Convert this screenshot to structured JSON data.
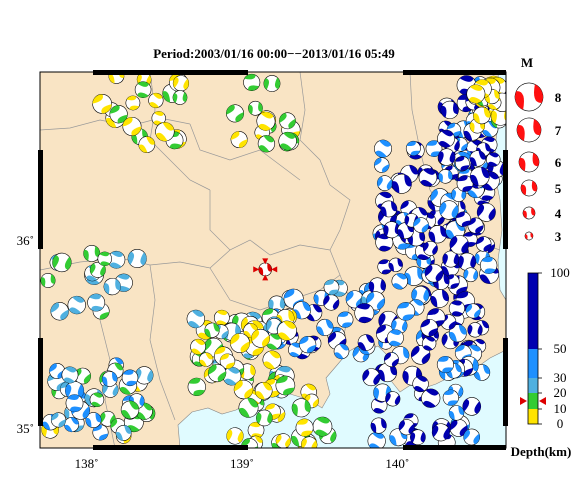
{
  "title": "Period:2003/01/16 00:00−−2013/01/16 05:49",
  "axes": {
    "x_ticks": [
      "138˚",
      "139˚",
      "140˚"
    ],
    "y_ticks": [
      "36˚",
      "35˚"
    ],
    "lon_range": [
      137.7,
      140.7
    ],
    "lat_range": [
      34.9,
      36.9
    ]
  },
  "magnitude_legend": {
    "title": "M",
    "items": [
      {
        "m": 8,
        "label": "8"
      },
      {
        "m": 7,
        "label": "7"
      },
      {
        "m": 6,
        "label": "6"
      },
      {
        "m": 5,
        "label": "5"
      },
      {
        "m": 4,
        "label": "4"
      },
      {
        "m": 3,
        "label": "3"
      }
    ]
  },
  "depth_scale": {
    "title": "Depth(km)",
    "ticks": [
      {
        "value": 100,
        "label": "100"
      },
      {
        "value": 50,
        "label": "50"
      },
      {
        "value": 30,
        "label": "30"
      },
      {
        "value": 20,
        "label": "20"
      },
      {
        "value": 10,
        "label": "10"
      },
      {
        "value": 0,
        "label": "0"
      }
    ],
    "marker_depth": 15
  },
  "colors": {
    "land": "#f9e4c4",
    "sea": "#e0fbff",
    "legend_fill": "#ff1010",
    "depth_0_10": "#ffe400",
    "depth_10_20": "#33cc33",
    "depth_20_30": "#4fb0e0",
    "depth_30_50": "#1e90ff",
    "depth_50_100": "#0000b0",
    "marker": "#dd0000"
  },
  "main_event": {
    "lon": 139.15,
    "lat": 35.85,
    "depth": 15,
    "m": 5
  }
}
